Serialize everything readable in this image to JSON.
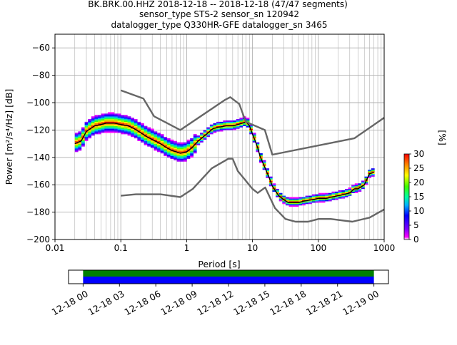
{
  "header": {
    "title_line1": "BK.BRK.00.HHZ   2018-12-18 -- 2018-12-18  (47/47 segments)",
    "title_line2": "sensor_type STS-2 sensor_sn 120942",
    "title_line3": "datalogger_type Q330HR-GFE datalogger_sn 3465"
  },
  "colors": {
    "model": "#666666",
    "mode": "#000000",
    "grid": "#b0b0b0",
    "coverage_top": "#008000",
    "coverage_bottom": "#0000ff"
  },
  "chart_data": [
    {
      "type": "heatmap",
      "xlabel": "Period [s]",
      "ylabel": "Power [m²/s⁴/Hz] [dB]",
      "xscale": "log",
      "xlim": [
        0.01,
        1000
      ],
      "ylim": [
        -200,
        -50
      ],
      "x_tick_labels": [
        "0.01",
        "0.1",
        "1",
        "10",
        "100",
        "1000"
      ],
      "x_ticks": [
        0.01,
        0.1,
        1,
        10,
        100,
        1000
      ],
      "y_ticks": [
        -200,
        -180,
        -160,
        -140,
        -120,
        -100,
        -80,
        -60
      ],
      "y_tick_labels": [
        "−200",
        "−180",
        "−160",
        "−140",
        "−120",
        "−100",
        "−80",
        "−60"
      ],
      "grid": true,
      "colorbar": {
        "label": "[%]",
        "range": [
          0,
          30
        ],
        "ticks": [
          0,
          5,
          10,
          15,
          20,
          25,
          30
        ]
      },
      "series": [
        {
          "role": "mode",
          "x": [
            0.02,
            0.025,
            0.03,
            0.04,
            0.05,
            0.06,
            0.08,
            0.1,
            0.13,
            0.16,
            0.2,
            0.25,
            0.3,
            0.4,
            0.5,
            0.6,
            0.7,
            0.8,
            1.0,
            1.2,
            1.5,
            2,
            2.5,
            3,
            4,
            5,
            6,
            7,
            8,
            9,
            10,
            11,
            12,
            13,
            15,
            18,
            20,
            25,
            30,
            35,
            40,
            50,
            60,
            80,
            100,
            130,
            160,
            200,
            250,
            300,
            350,
            400,
            500,
            600,
            700
          ],
          "y": [
            -130,
            -128,
            -121,
            -117,
            -116,
            -115,
            -115,
            -116,
            -117,
            -119,
            -122,
            -125,
            -127,
            -130,
            -133,
            -135,
            -136,
            -137,
            -136,
            -133,
            -128,
            -123,
            -119,
            -118,
            -117,
            -117,
            -116,
            -115,
            -114,
            -117,
            -123,
            -128,
            -133,
            -139,
            -146,
            -155,
            -161,
            -168,
            -171,
            -173,
            -173,
            -173,
            -172,
            -171,
            -170,
            -170,
            -169,
            -168,
            -167,
            -166,
            -163,
            -163,
            -160,
            -152,
            -151
          ]
        },
        {
          "role": "low_noise_model",
          "x": [
            0.1,
            0.17,
            0.4,
            0.8,
            1.24,
            2.4,
            4.3,
            5,
            6,
            10,
            12,
            15.6,
            21.9,
            31.6,
            45,
            70,
            101,
            154,
            328,
            600,
            1000
          ],
          "y": [
            -168,
            -167,
            -167,
            -169,
            -163,
            -148,
            -141,
            -141,
            -150,
            -163,
            -166,
            -162,
            -177,
            -185,
            -187,
            -187,
            -185,
            -185,
            -187,
            -184,
            -178
          ]
        },
        {
          "role": "high_noise_model",
          "x": [
            0.1,
            0.22,
            0.32,
            0.8,
            3.8,
            4.6,
            6.3,
            7.9,
            15.4,
            20,
            354.8,
            1000
          ],
          "y": [
            -91,
            -97,
            -110,
            -120,
            -98,
            -96,
            -101,
            -114,
            -120,
            -138,
            -126,
            -111
          ]
        }
      ]
    },
    {
      "type": "coverage",
      "x_tick_labels": [
        "12-18 00",
        "12-18 03",
        "12-18 06",
        "12-18 09",
        "12-18 12",
        "12-18 15",
        "12-18 18",
        "12-18 21",
        "12-19 00"
      ],
      "hours": [
        0,
        3,
        6,
        9,
        12,
        15,
        18,
        21,
        24
      ],
      "xlim_hours": [
        -1.2,
        25.2
      ],
      "data_start_hours": 0,
      "data_end_hours": 24
    }
  ]
}
